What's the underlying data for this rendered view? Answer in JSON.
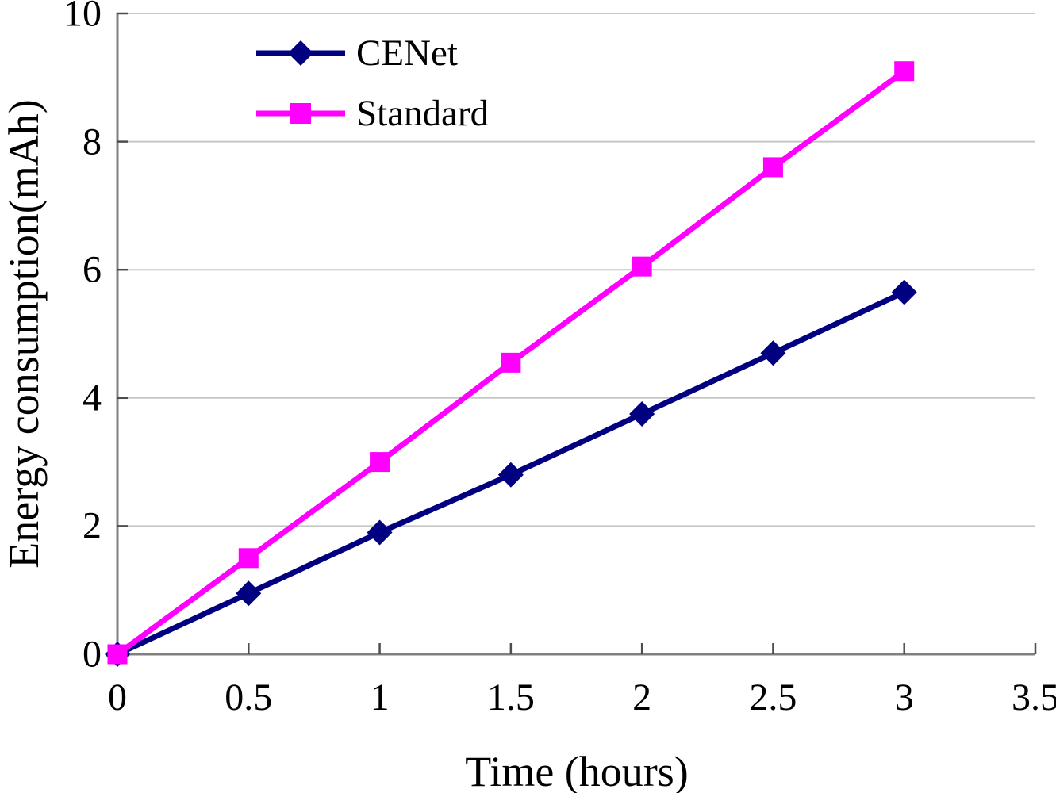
{
  "chart_data": {
    "type": "line",
    "title": "",
    "xlabel": "Time (hours)",
    "ylabel": "Energy consumption(mAh)",
    "xlim": [
      0,
      3.5
    ],
    "ylim": [
      0,
      10
    ],
    "x": [
      0,
      0.5,
      1,
      1.5,
      2,
      2.5,
      3
    ],
    "x_ticks": [
      "0",
      "0.5",
      "1",
      "1.5",
      "2",
      "2.5",
      "3",
      "3.5"
    ],
    "y_ticks": [
      "0",
      "2",
      "4",
      "6",
      "8",
      "10"
    ],
    "grid": "horizontal-only",
    "legend_position": "top-left-inside",
    "series": [
      {
        "name": "CENet",
        "color": "#000080",
        "marker": "diamond",
        "values": [
          0,
          0.95,
          1.9,
          2.8,
          3.75,
          4.7,
          5.65
        ]
      },
      {
        "name": "Standard",
        "color": "#ff00ff",
        "marker": "square",
        "values": [
          0,
          1.5,
          3.0,
          4.55,
          6.05,
          7.6,
          9.1
        ]
      }
    ],
    "style": {
      "grid_color": "#c6c6c6",
      "axis_color": "#808080",
      "tick_color": "#4d4d4d",
      "background": "#ffffff"
    }
  }
}
